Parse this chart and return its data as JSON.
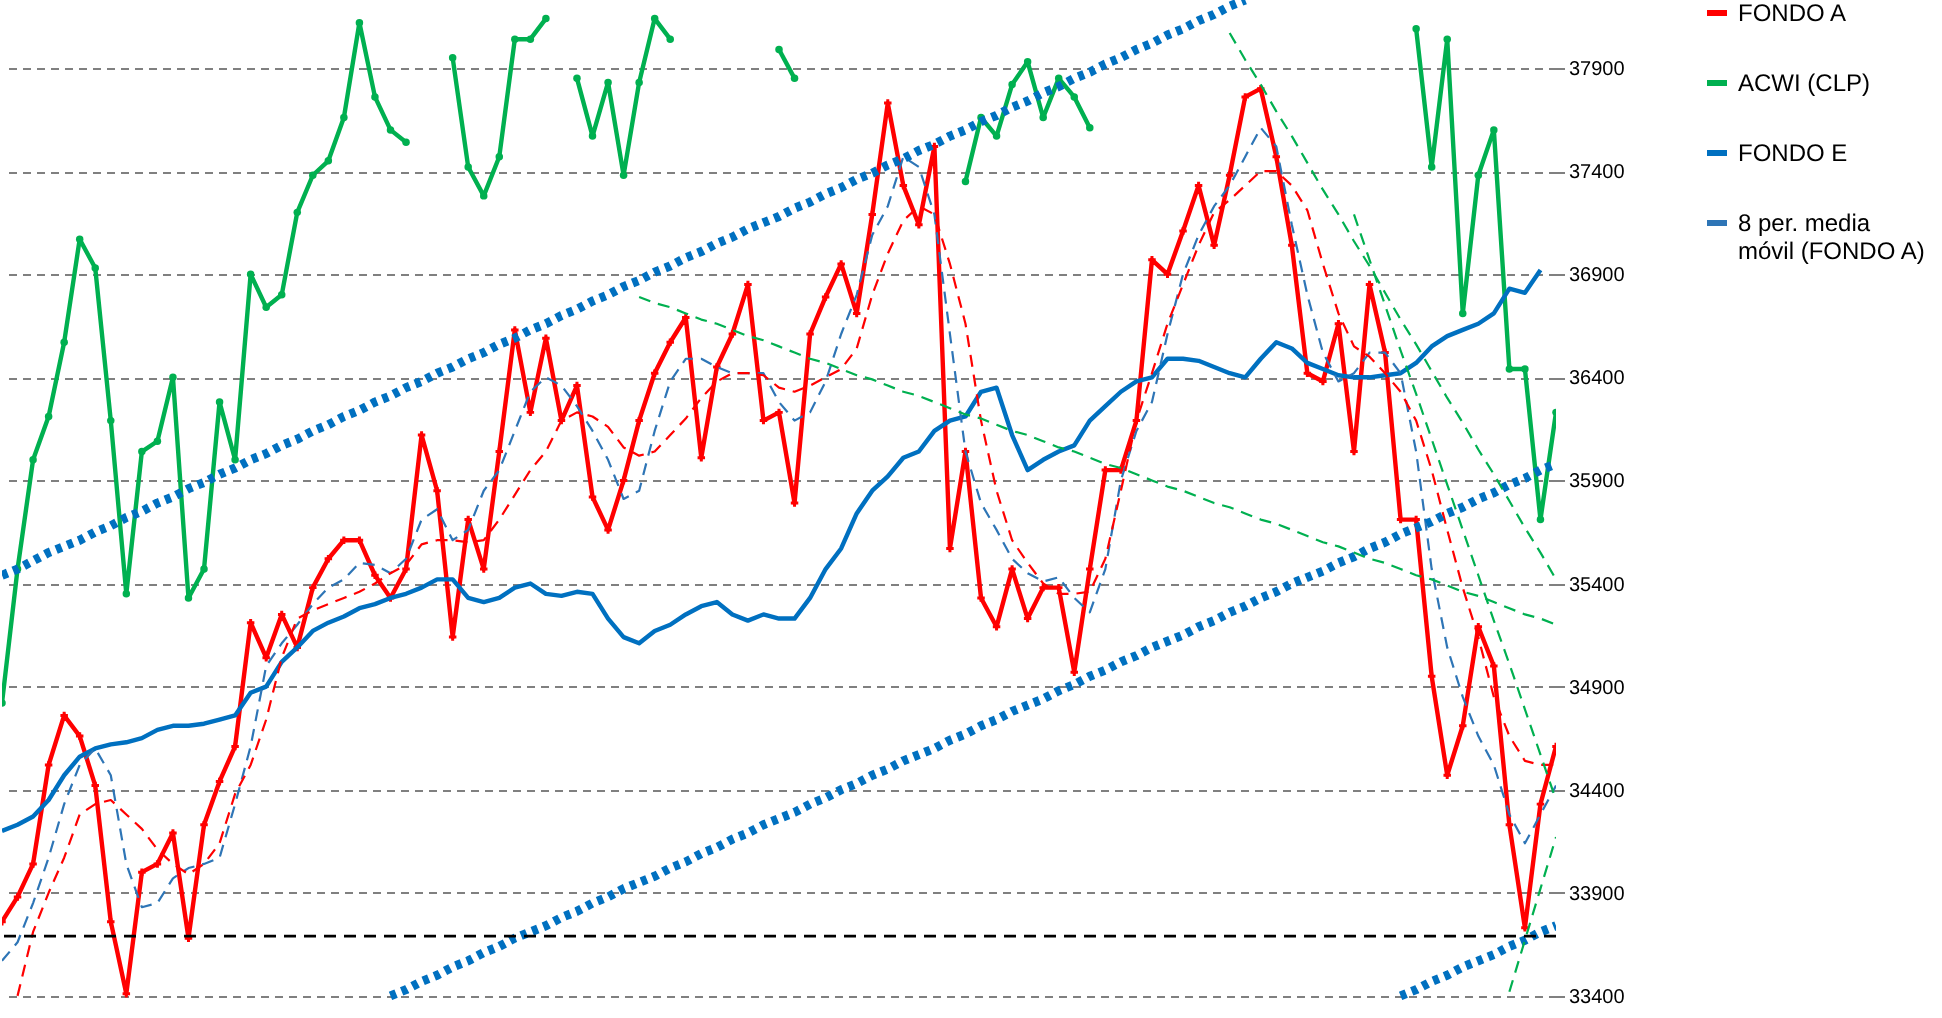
{
  "chart_data": {
    "type": "line",
    "categories": [
      null,
      null,
      null,
      null,
      null,
      null,
      null,
      null,
      null,
      null,
      null,
      null,
      null,
      null,
      null,
      null,
      null,
      null,
      null,
      null,
      null,
      null,
      null,
      null,
      null,
      null,
      null,
      null,
      null,
      null,
      null,
      null,
      null,
      null,
      null,
      null,
      null,
      null,
      null,
      null,
      null,
      null,
      null,
      null,
      null,
      null,
      null,
      null,
      null,
      null,
      null,
      null,
      null,
      null,
      null,
      null,
      null,
      null,
      null,
      null,
      null,
      null,
      null,
      null,
      null,
      null,
      null,
      null,
      null,
      null,
      null,
      null,
      null,
      null,
      null,
      null,
      null,
      null,
      null,
      null,
      null,
      null,
      null,
      null,
      null,
      null,
      null,
      null,
      null,
      null,
      null,
      null,
      null,
      null,
      null,
      null,
      null,
      null,
      null,
      null,
      null
    ],
    "ylim": [
      33380,
      38230
    ],
    "yticks": [
      33400,
      33900,
      34400,
      34900,
      35400,
      35900,
      36400,
      36900,
      37400,
      37900
    ],
    "grid": "y",
    "legend": "right",
    "tick_labels": "y",
    "ref_lines": [
      {
        "axis": "y",
        "value": 33690,
        "color": "#000000",
        "line_style": "dashed"
      }
    ],
    "series": [
      {
        "name": "FONDO A",
        "type": "line",
        "color": "#ff0000",
        "marker": "cross",
        "line_style": "solid",
        "values": [
          33760,
          33880,
          34040,
          34520,
          34760,
          34660,
          34420,
          33760,
          33410,
          34000,
          34040,
          34190,
          33680,
          34230,
          34440,
          34610,
          35210,
          35040,
          35250,
          35090,
          35380,
          35520,
          35610,
          35610,
          35440,
          35330,
          35470,
          36120,
          35850,
          35140,
          35710,
          35470,
          36040,
          36630,
          36230,
          36590,
          36190,
          36360,
          35820,
          35660,
          35900,
          36190,
          36420,
          36570,
          36690,
          36010,
          36450,
          36610,
          36850,
          36190,
          36230,
          35790,
          36610,
          36790,
          36950,
          36710,
          37190,
          37730,
          37330,
          37140,
          37520,
          35570,
          36040,
          35330,
          35190,
          35470,
          35230,
          35380,
          35380,
          34970,
          35470,
          35950,
          35950,
          36190,
          36970,
          36900,
          37110,
          37330,
          37040,
          37380,
          37760,
          37800,
          37470,
          37040,
          36420,
          36380,
          36660,
          36040,
          36850,
          36520,
          35710,
          35710,
          34950,
          34470,
          34710,
          35190,
          35000,
          34230,
          33730,
          34330,
          34610
        ]
      },
      {
        "name": "ACWI (CLP)",
        "type": "line",
        "color": "#00b050",
        "marker": "circle",
        "line_style": "solid",
        "values": [
          34820,
          35470,
          36000,
          36210,
          36570,
          37070,
          36930,
          36190,
          35350,
          36040,
          36090,
          36400,
          35330,
          35470,
          36280,
          36000,
          36900,
          36740,
          36800,
          37200,
          37380,
          37450,
          37660,
          38120,
          37760,
          37600,
          37540,
          null,
          null,
          37950,
          37420,
          37280,
          37470,
          38040,
          38040,
          38140,
          null,
          37850,
          37570,
          37830,
          37380,
          37830,
          38140,
          38040,
          null,
          null,
          null,
          null,
          null,
          null,
          37990,
          37850,
          null,
          null,
          null,
          null,
          null,
          null,
          null,
          null,
          null,
          null,
          37350,
          37660,
          37570,
          37820,
          37930,
          37660,
          37850,
          37760,
          37610,
          null,
          null,
          null,
          null,
          null,
          null,
          null,
          null,
          null,
          null,
          null,
          null,
          null,
          null,
          null,
          null,
          null,
          null,
          null,
          null,
          38090,
          37420,
          38040,
          36710,
          37380,
          37600,
          36440,
          36440,
          35710,
          36230
        ]
      },
      {
        "name": "FONDO E",
        "type": "line",
        "color": "#0070c0",
        "line_style": "solid",
        "values": [
          34200,
          34230,
          34270,
          34350,
          34470,
          34560,
          34600,
          34620,
          34630,
          34650,
          34690,
          34710,
          34710,
          34720,
          34740,
          34760,
          34870,
          34900,
          35020,
          35090,
          35170,
          35210,
          35240,
          35280,
          35300,
          35330,
          35350,
          35380,
          35420,
          35420,
          35330,
          35310,
          35330,
          35380,
          35400,
          35350,
          35340,
          35360,
          35350,
          35230,
          35140,
          35110,
          35170,
          35200,
          35250,
          35290,
          35310,
          35250,
          35220,
          35250,
          35230,
          35230,
          35330,
          35470,
          35570,
          35740,
          35850,
          35920,
          36010,
          36040,
          36140,
          36190,
          36210,
          36330,
          36350,
          36120,
          35950,
          36000,
          36040,
          36070,
          36190,
          36260,
          36330,
          36380,
          36400,
          36490,
          36490,
          36480,
          36450,
          36420,
          36400,
          36490,
          36570,
          36540,
          36470,
          36440,
          36410,
          36400,
          36400,
          36410,
          36420,
          36470,
          36550,
          36600,
          36630,
          36660,
          36710,
          36830,
          36810,
          36920,
          null
        ]
      },
      {
        "name": "8 per. media móvil (FONDO A)",
        "type": "line",
        "color": "#2e75b6",
        "line_style": "dashed",
        "values": [
          33570,
          33660,
          33850,
          34070,
          34330,
          34520,
          34600,
          34470,
          34040,
          33830,
          33850,
          33970,
          34020,
          34040,
          34070,
          34330,
          34610,
          35000,
          35110,
          35200,
          35300,
          35380,
          35420,
          35500,
          35490,
          35450,
          35520,
          35710,
          35760,
          35610,
          35660,
          35850,
          35950,
          36140,
          36330,
          36400,
          36360,
          36260,
          36140,
          36000,
          35810,
          35850,
          36140,
          36380,
          36490,
          36490,
          36450,
          36420,
          36420,
          36420,
          36280,
          36190,
          36230,
          36380,
          36610,
          36800,
          37090,
          37230,
          37470,
          37420,
          37190,
          36610,
          36040,
          35790,
          35660,
          35520,
          35450,
          35410,
          35430,
          35330,
          35260,
          35470,
          35900,
          36140,
          36280,
          36610,
          36900,
          37090,
          37230,
          37330,
          37470,
          37610,
          37520,
          37140,
          36800,
          36520,
          36380,
          36420,
          36520,
          36520,
          36420,
          36040,
          35470,
          35090,
          34850,
          34660,
          34520,
          34280,
          34140,
          34280,
          34420
        ]
      },
      {
        "type": "line",
        "color": "#ff0000",
        "line_style": "dashed",
        "values": [
          null,
          33400,
          33710,
          33900,
          34070,
          34280,
          34330,
          34350,
          34280,
          34210,
          34110,
          34040,
          33990,
          34040,
          34140,
          34380,
          34520,
          34740,
          35040,
          35230,
          35270,
          35300,
          35330,
          35360,
          35400,
          35450,
          35490,
          35590,
          35610,
          35610,
          35600,
          35610,
          35710,
          35830,
          35950,
          36040,
          36190,
          36230,
          36210,
          36160,
          36060,
          36020,
          36040,
          36120,
          36200,
          36300,
          36380,
          36420,
          36420,
          36410,
          36350,
          36330,
          36360,
          36400,
          36440,
          36540,
          36800,
          37000,
          37160,
          37230,
          37190,
          36950,
          36660,
          36190,
          35850,
          35610,
          35500,
          35400,
          35350,
          35350,
          35360,
          35520,
          35850,
          36190,
          36420,
          36660,
          36850,
          37040,
          37200,
          37260,
          37330,
          37400,
          37400,
          37330,
          37210,
          36950,
          36710,
          36550,
          36500,
          36420,
          36330,
          36190,
          35950,
          35660,
          35380,
          35140,
          34850,
          34660,
          34540,
          34520,
          34520
        ]
      },
      {
        "type": "line",
        "color": "#0070c0",
        "line_style": "dotted",
        "values": [
          35440,
          35470,
          35510,
          35550,
          35580,
          35610,
          35650,
          35680,
          35720,
          35750,
          35790,
          35820,
          35860,
          35890,
          35930,
          35960,
          36000,
          36030,
          36070,
          36100,
          36140,
          36170,
          36210,
          36240,
          36280,
          36310,
          36350,
          36380,
          36420,
          36450,
          36490,
          36520,
          36560,
          36590,
          36630,
          36660,
          36700,
          36730,
          36770,
          36800,
          36840,
          36870,
          36910,
          36940,
          36980,
          37010,
          37050,
          37080,
          37120,
          37150,
          37180,
          37220,
          37250,
          37290,
          37320,
          37360,
          37390,
          37430,
          37460,
          37500,
          37530,
          37570,
          37600,
          37640,
          37670,
          37710,
          37740,
          37780,
          37810,
          37850,
          37880,
          37920,
          37950,
          37990,
          38020,
          38060,
          38090,
          38130,
          38160,
          38200,
          38230,
          null,
          null,
          null,
          null,
          null,
          null,
          null,
          null,
          null,
          null,
          null,
          null,
          null,
          null,
          null,
          null,
          null,
          null,
          null,
          null
        ]
      },
      {
        "type": "line",
        "color": "#0070c0",
        "line_style": "dotted",
        "values": [
          null,
          null,
          null,
          null,
          null,
          null,
          null,
          null,
          null,
          null,
          null,
          null,
          null,
          null,
          null,
          null,
          null,
          null,
          null,
          null,
          null,
          null,
          null,
          null,
          null,
          33400,
          33430,
          33470,
          33500,
          33540,
          33570,
          33610,
          33640,
          33680,
          33710,
          33740,
          33780,
          33810,
          33850,
          33880,
          33920,
          33950,
          33980,
          34020,
          34050,
          34090,
          34120,
          34160,
          34190,
          34230,
          34260,
          34290,
          34330,
          34360,
          34400,
          34430,
          34470,
          34500,
          34540,
          34570,
          34600,
          34640,
          34670,
          34710,
          34740,
          34780,
          34810,
          34840,
          34880,
          34910,
          34950,
          34980,
          35020,
          35050,
          35090,
          35120,
          35150,
          35190,
          35220,
          35260,
          35290,
          35330,
          35360,
          35400,
          35430,
          35460,
          35500,
          35530,
          35570,
          35600,
          35640,
          35670,
          35700,
          35740,
          35770,
          35810,
          35840,
          35880,
          35910,
          35950,
          35980
        ]
      },
      {
        "type": "line",
        "color": "#0070c0",
        "line_style": "dotted",
        "values": [
          null,
          null,
          null,
          null,
          null,
          null,
          null,
          null,
          null,
          null,
          null,
          null,
          null,
          null,
          null,
          null,
          null,
          null,
          null,
          null,
          null,
          null,
          null,
          null,
          null,
          null,
          null,
          null,
          null,
          null,
          null,
          null,
          null,
          null,
          null,
          null,
          null,
          null,
          null,
          null,
          null,
          null,
          null,
          null,
          null,
          null,
          null,
          null,
          null,
          null,
          null,
          null,
          null,
          null,
          null,
          null,
          null,
          null,
          null,
          null,
          null,
          null,
          null,
          null,
          null,
          null,
          null,
          null,
          null,
          null,
          null,
          null,
          null,
          null,
          null,
          null,
          null,
          null,
          null,
          null,
          null,
          null,
          null,
          null,
          null,
          null,
          null,
          null,
          null,
          null,
          33400,
          33430,
          33470,
          33500,
          33540,
          33570,
          33600,
          33640,
          33670,
          33710,
          33740
        ]
      },
      {
        "type": "line",
        "color": "#00b050",
        "line_style": "dashed",
        "values": [
          null,
          null,
          null,
          null,
          null,
          null,
          null,
          null,
          null,
          null,
          null,
          null,
          null,
          null,
          null,
          null,
          null,
          null,
          null,
          null,
          null,
          null,
          null,
          null,
          null,
          null,
          null,
          null,
          null,
          null,
          null,
          null,
          null,
          null,
          null,
          null,
          null,
          null,
          null,
          null,
          null,
          36790,
          36760,
          36740,
          36710,
          36680,
          36660,
          36630,
          36600,
          36580,
          36550,
          36520,
          36490,
          36470,
          36440,
          36410,
          36390,
          36360,
          36330,
          36310,
          36280,
          36250,
          36220,
          36200,
          36170,
          36140,
          36120,
          36090,
          36060,
          36040,
          36010,
          35980,
          35960,
          35930,
          35900,
          35870,
          35850,
          35820,
          35790,
          35770,
          35740,
          35710,
          35690,
          35660,
          35630,
          35600,
          35580,
          35550,
          35520,
          35500,
          35470,
          35440,
          35420,
          35390,
          35360,
          35340,
          35310,
          35280,
          35250,
          35230,
          35200
        ]
      },
      {
        "type": "line",
        "color": "#00b050",
        "line_style": "dashed",
        "values": [
          null,
          null,
          null,
          null,
          null,
          null,
          null,
          null,
          null,
          null,
          null,
          null,
          null,
          null,
          null,
          null,
          null,
          null,
          null,
          null,
          null,
          null,
          null,
          null,
          null,
          null,
          null,
          null,
          null,
          null,
          null,
          null,
          null,
          null,
          null,
          null,
          null,
          null,
          null,
          null,
          null,
          null,
          null,
          null,
          null,
          null,
          null,
          null,
          null,
          null,
          null,
          null,
          null,
          null,
          null,
          null,
          null,
          null,
          null,
          null,
          null,
          null,
          null,
          null,
          null,
          null,
          null,
          null,
          null,
          null,
          null,
          null,
          null,
          null,
          null,
          null,
          null,
          null,
          null,
          38070,
          37940,
          37820,
          37690,
          37570,
          37440,
          37310,
          37190,
          37060,
          36940,
          36810,
          36680,
          36560,
          36430,
          36300,
          36180,
          36050,
          35930,
          35800,
          35670,
          35550,
          35420
        ]
      },
      {
        "type": "line",
        "color": "#00b050",
        "line_style": "dashed",
        "values": [
          null,
          null,
          null,
          null,
          null,
          null,
          null,
          null,
          null,
          null,
          null,
          null,
          null,
          null,
          null,
          null,
          null,
          null,
          null,
          null,
          null,
          null,
          null,
          null,
          null,
          null,
          null,
          null,
          null,
          null,
          null,
          null,
          null,
          null,
          null,
          null,
          null,
          null,
          null,
          null,
          null,
          null,
          null,
          null,
          null,
          null,
          null,
          null,
          null,
          null,
          null,
          null,
          null,
          null,
          null,
          null,
          null,
          null,
          null,
          null,
          null,
          null,
          null,
          null,
          null,
          null,
          null,
          null,
          null,
          null,
          null,
          null,
          null,
          null,
          null,
          null,
          null,
          null,
          null,
          null,
          null,
          null,
          null,
          null,
          null,
          null,
          null,
          37190,
          36970,
          36750,
          36530,
          36320,
          36100,
          35880,
          35660,
          35440,
          35220,
          35010,
          34790,
          34570,
          34350
        ]
      },
      {
        "type": "line",
        "color": "#00b050",
        "line_style": "dashed",
        "values": [
          null,
          null,
          null,
          null,
          null,
          null,
          null,
          null,
          null,
          null,
          null,
          null,
          null,
          null,
          null,
          null,
          null,
          null,
          null,
          null,
          null,
          null,
          null,
          null,
          null,
          null,
          null,
          null,
          null,
          null,
          null,
          null,
          null,
          null,
          null,
          null,
          null,
          null,
          null,
          null,
          null,
          null,
          null,
          null,
          null,
          null,
          null,
          null,
          null,
          null,
          null,
          null,
          null,
          null,
          null,
          null,
          null,
          null,
          null,
          null,
          null,
          null,
          null,
          null,
          null,
          null,
          null,
          null,
          null,
          null,
          null,
          null,
          null,
          null,
          null,
          null,
          null,
          null,
          null,
          null,
          null,
          null,
          null,
          null,
          null,
          null,
          null,
          null,
          null,
          null,
          null,
          null,
          null,
          null,
          null,
          null,
          null,
          33420,
          33670,
          33920,
          34170
        ]
      }
    ]
  }
}
